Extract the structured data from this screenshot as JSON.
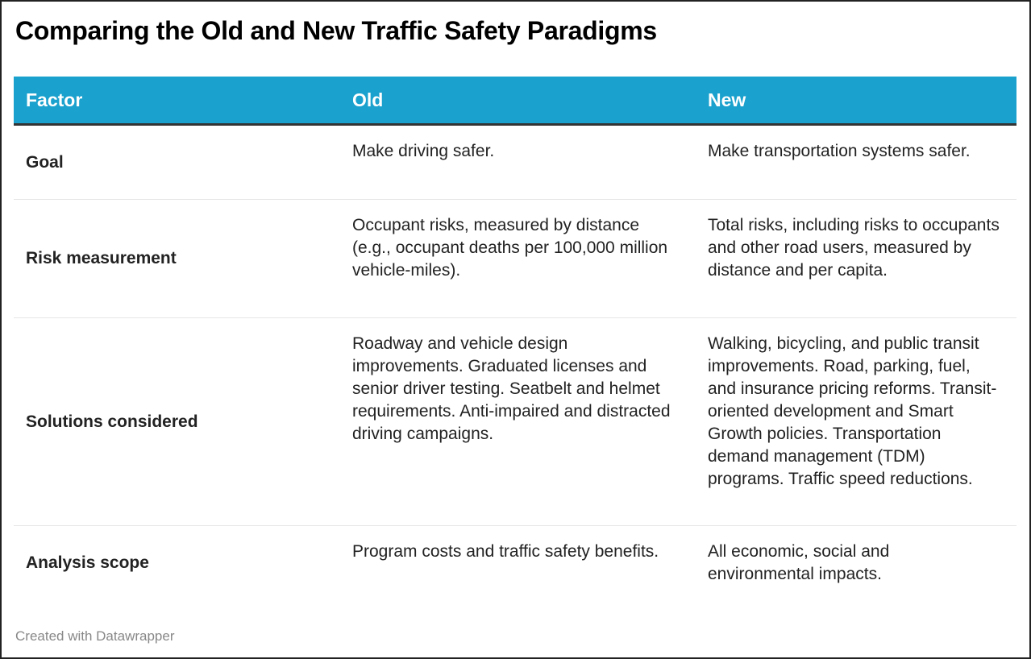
{
  "title": "Comparing the Old and New Traffic Safety Paradigms",
  "colors": {
    "header_bg": "#1aa1cd",
    "header_text": "#ffffff"
  },
  "table": {
    "headers": [
      "Factor",
      "Old",
      "New"
    ],
    "rows": [
      {
        "factor": "Goal",
        "old": "Make driving safer.",
        "new": "Make transportation systems safer."
      },
      {
        "factor": "Risk measurement",
        "old": "Occupant risks, measured by distance (e.g., occupant deaths per 100,000 million vehicle-miles).",
        "new": "Total risks, including risks to occupants and other road users, measured by distance and per capita."
      },
      {
        "factor": "Solutions considered",
        "old": "Roadway and vehicle design improvements. Graduated licenses and senior driver testing. Seatbelt and helmet requirements. Anti-impaired and distracted driving campaigns.",
        "new": "Walking, bicycling, and public transit improvements. Road, parking, fuel, and insurance pricing reforms. Transit-oriented development and Smart Growth policies. Transportation demand management (TDM) programs. Traffic speed reductions."
      },
      {
        "factor": "Analysis scope",
        "old": "Program costs and traffic safety benefits.",
        "new": "All economic, social and environmental impacts."
      }
    ]
  },
  "footer": "Created with Datawrapper"
}
